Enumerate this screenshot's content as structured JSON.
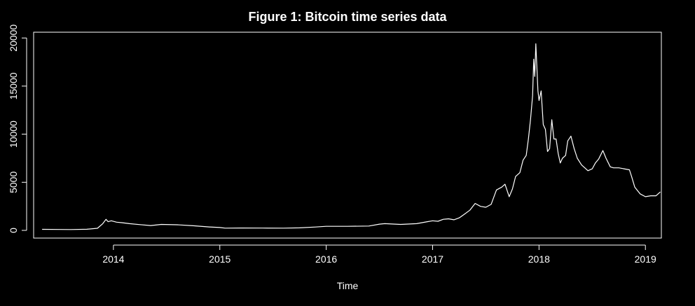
{
  "chart_data": {
    "type": "line",
    "title": "Figure  1: Bitcoin time series data",
    "xlabel": "Time",
    "ylabel": "",
    "xlim": [
      2013.25,
      2019.15
    ],
    "ylim": [
      -800,
      20600
    ],
    "x_ticks": [
      2014,
      2015,
      2016,
      2017,
      2018,
      2019
    ],
    "x_tick_labels": [
      "2014",
      "2015",
      "2016",
      "2017",
      "2018",
      "2019"
    ],
    "y_ticks": [
      0,
      5000,
      10000,
      15000,
      20000
    ],
    "y_tick_labels": [
      "0",
      "5000",
      "10000",
      "15000",
      "20000"
    ],
    "grid": false,
    "colors": {
      "background": "#000000",
      "foreground": "#ffffff",
      "line": "#ffffff"
    },
    "series": [
      {
        "x": [
          2013.33,
          2013.5,
          2013.6,
          2013.75,
          2013.85,
          2013.9,
          2013.93,
          2013.95,
          2013.98,
          2014.03,
          2014.08,
          2014.15,
          2014.25,
          2014.35,
          2014.45,
          2014.6,
          2014.75,
          2014.9,
          2015.0,
          2015.05,
          2015.2,
          2015.4,
          2015.6,
          2015.75,
          2015.9,
          2016.0,
          2016.2,
          2016.4,
          2016.5,
          2016.55,
          2016.7,
          2016.85,
          2016.95,
          2017.0,
          2017.05,
          2017.1,
          2017.15,
          2017.2,
          2017.25,
          2017.3,
          2017.35,
          2017.4,
          2017.45,
          2017.5,
          2017.55,
          2017.6,
          2017.65,
          2017.68,
          2017.72,
          2017.75,
          2017.78,
          2017.82,
          2017.85,
          2017.88,
          2017.9,
          2017.92,
          2017.94,
          2017.95,
          2017.96,
          2017.97,
          2017.98,
          2017.99,
          2018.0,
          2018.02,
          2018.04,
          2018.06,
          2018.08,
          2018.1,
          2018.12,
          2018.14,
          2018.16,
          2018.18,
          2018.2,
          2018.22,
          2018.25,
          2018.27,
          2018.3,
          2018.33,
          2018.36,
          2018.4,
          2018.43,
          2018.46,
          2018.5,
          2018.53,
          2018.56,
          2018.6,
          2018.63,
          2018.67,
          2018.7,
          2018.75,
          2018.8,
          2018.85,
          2018.87,
          2018.9,
          2018.95,
          2019.0,
          2019.05,
          2019.1,
          2019.14
        ],
        "y": [
          110,
          95,
          90,
          120,
          220,
          700,
          1150,
          900,
          1000,
          850,
          800,
          700,
          600,
          500,
          620,
          580,
          480,
          360,
          300,
          230,
          250,
          240,
          230,
          260,
          350,
          420,
          420,
          450,
          650,
          700,
          620,
          700,
          900,
          1000,
          950,
          1150,
          1200,
          1100,
          1300,
          1700,
          2100,
          2800,
          2500,
          2400,
          2700,
          4200,
          4500,
          4800,
          3500,
          4300,
          5600,
          6000,
          7300,
          7800,
          9500,
          11500,
          14000,
          17800,
          16000,
          19400,
          17000,
          14500,
          13500,
          14500,
          11000,
          10500,
          8200,
          8500,
          11500,
          9500,
          9500,
          8000,
          7000,
          7500,
          7800,
          9300,
          9800,
          8500,
          7500,
          6800,
          6500,
          6200,
          6400,
          7000,
          7400,
          8300,
          7500,
          6600,
          6500,
          6500,
          6400,
          6300,
          5600,
          4500,
          3800,
          3500,
          3600,
          3600,
          4000
        ]
      }
    ]
  }
}
